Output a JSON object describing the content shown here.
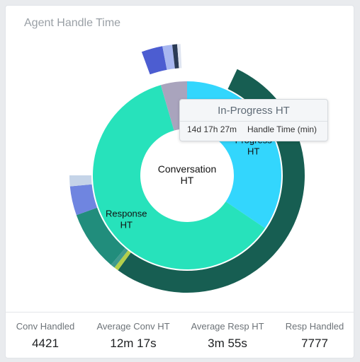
{
  "title": "Agent Handle Time",
  "tooltip": {
    "title": "In-Progress HT",
    "value": "14d 17h 27m",
    "metric": "Handle Time (min)"
  },
  "chart_data": {
    "type": "sunburst",
    "title": "Agent Handle Time",
    "center_label": [
      "Conversation",
      "HT"
    ],
    "inner_ring": [
      {
        "name": "In-Progress HT",
        "label_lines": [
          "In-",
          "Progress",
          "HT"
        ],
        "share": 0.345,
        "color": "#33d6fd"
      },
      {
        "name": "Response HT",
        "label_lines": [
          "Response",
          "HT"
        ],
        "share": 0.61,
        "color": "#27e2bb"
      },
      {
        "name": "",
        "label_lines": [],
        "share": 0.045,
        "color": "#a9a4bd"
      }
    ],
    "outer_ring": [
      {
        "share": 0.07,
        "color": "#ffffff"
      },
      {
        "share": 0.53,
        "color": "#175e52"
      },
      {
        "share": 0.006,
        "color": "#b3cf4a"
      },
      {
        "share": 0.006,
        "color": "#3e9a8d"
      },
      {
        "share": 0.083,
        "color": "#218d7c"
      },
      {
        "share": 0.04,
        "color": "#6f85e0"
      },
      {
        "share": 0.015,
        "color": "#c5d4e8"
      },
      {
        "share": 0.25,
        "color": "#ffffff"
      }
    ],
    "third_ring": [
      {
        "share": 0.944,
        "color": "#ffffff"
      },
      {
        "share": 0.026,
        "color": "#4c5dd1"
      },
      {
        "share": 0.012,
        "color": "#a8b7f0"
      },
      {
        "share": 0.006,
        "color": "#2b3b56"
      },
      {
        "share": 0.004,
        "color": "#dfe5f1"
      },
      {
        "share": 0.008,
        "color": "#ffffff"
      }
    ]
  },
  "stats": [
    {
      "label": "Conv Handled",
      "value": "4421"
    },
    {
      "label": "Average Conv HT",
      "value": "12m 17s"
    },
    {
      "label": "Average Resp HT",
      "value": "3m 55s"
    },
    {
      "label": "Resp Handled",
      "value": "7777"
    }
  ]
}
